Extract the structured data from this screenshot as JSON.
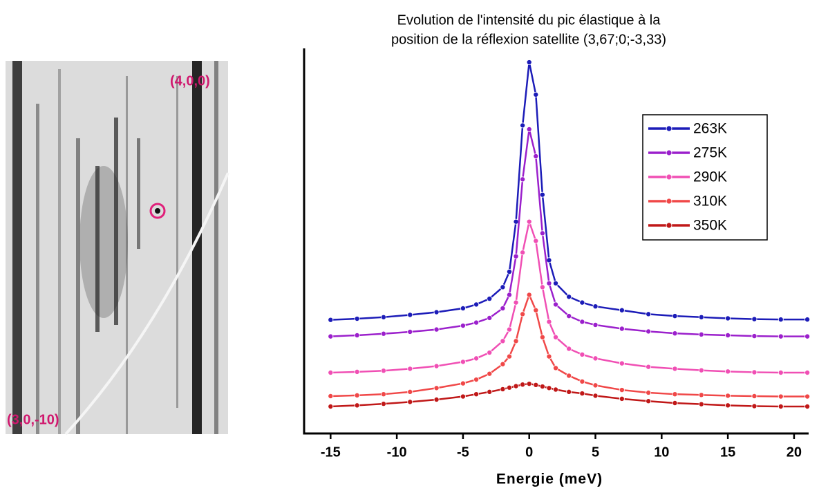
{
  "image": {
    "labels": [
      "(4,0,0)",
      "(3,0,-10)"
    ]
  },
  "chart_data": {
    "type": "line",
    "title": [
      "Evolution de l'intensité du pic élastique à la",
      "position de la réflexion satellite (3,67;0;-3,33)"
    ],
    "x_label": "Energie (meV)",
    "x": [
      -15,
      -13,
      -11,
      -9,
      -7,
      -5,
      -4,
      -3,
      -2,
      -1.5,
      -1,
      -0.5,
      0,
      0.5,
      1,
      1.5,
      2,
      3,
      4,
      5,
      7,
      9,
      11,
      13,
      15,
      17,
      19,
      21
    ],
    "series": [
      {
        "name": "263K",
        "color": "#1c1cb8",
        "values": [
          29.5,
          29.8,
          30.2,
          30.8,
          31.5,
          32.5,
          33.5,
          35,
          38,
          42,
          55,
          80,
          96.4,
          88,
          62,
          45,
          39,
          35.5,
          34,
          33,
          32,
          31,
          30.5,
          30.2,
          29.9,
          29.7,
          29.6,
          29.6
        ]
      },
      {
        "name": "275K",
        "color": "#9b20cc",
        "values": [
          25.2,
          25.5,
          25.9,
          26.4,
          27,
          28,
          28.8,
          30,
          32.5,
          36,
          46,
          66,
          79,
          72,
          52,
          39,
          33.5,
          30.5,
          29,
          28.2,
          27.2,
          26.5,
          26,
          25.7,
          25.5,
          25.3,
          25.2,
          25.2
        ]
      },
      {
        "name": "290K",
        "color": "#f04fb4",
        "values": [
          15.8,
          16,
          16.3,
          16.8,
          17.5,
          18.6,
          19.5,
          21,
          24,
          27,
          34,
          47,
          55,
          50,
          38,
          29,
          25,
          22,
          20.5,
          19.5,
          18.2,
          17.3,
          16.8,
          16.4,
          16.1,
          15.9,
          15.8,
          15.8
        ]
      },
      {
        "name": "310K",
        "color": "#f04848",
        "values": [
          9.7,
          9.9,
          10.2,
          10.8,
          11.8,
          13,
          14,
          15.5,
          18,
          20,
          24,
          31,
          36,
          32,
          25,
          20,
          17,
          15,
          13.5,
          12.5,
          11.3,
          10.6,
          10.2,
          10,
          9.8,
          9.7,
          9.6,
          9.6
        ]
      },
      {
        "name": "350K",
        "color": "#c01818",
        "values": [
          7,
          7.3,
          7.7,
          8.2,
          8.8,
          9.6,
          10.2,
          10.8,
          11.5,
          11.9,
          12.3,
          12.7,
          12.9,
          12.6,
          12.2,
          11.8,
          11.4,
          10.8,
          10.4,
          9.8,
          9,
          8.4,
          7.9,
          7.6,
          7.3,
          7.1,
          7,
          7
        ]
      }
    ],
    "xlim": [
      -17,
      21.1
    ],
    "ylim": [
      0,
      100
    ],
    "xticks": [
      -15,
      -10,
      -5,
      0,
      5,
      10,
      15,
      20
    ],
    "legend": "upper right",
    "grid": false
  }
}
